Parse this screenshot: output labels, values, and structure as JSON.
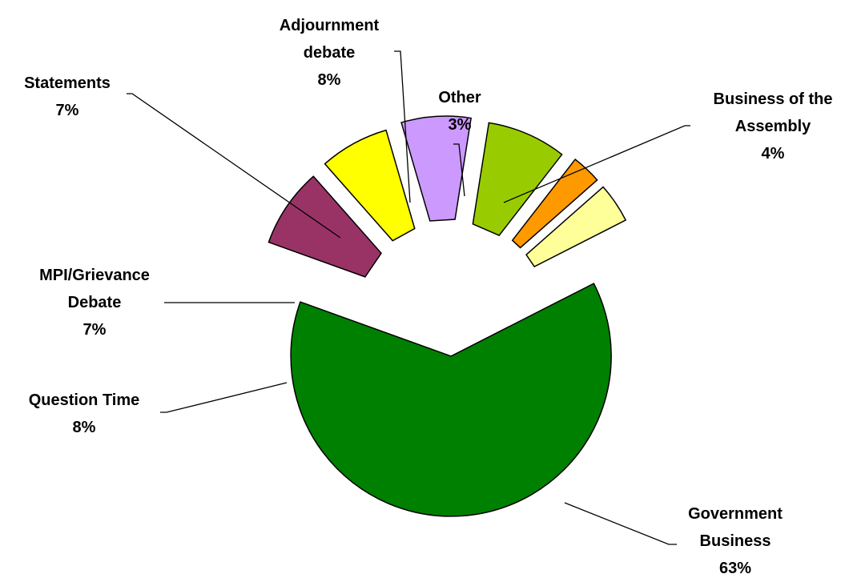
{
  "chart_data": {
    "type": "pie",
    "title": "",
    "exploded": true,
    "slices": [
      {
        "id": "government-business",
        "label_lines": [
          "Government",
          "Business"
        ],
        "percent_label": "63%",
        "value": 63,
        "color": "#008000"
      },
      {
        "id": "question-time",
        "label_lines": [
          "Question Time"
        ],
        "percent_label": "8%",
        "value": 8,
        "color": "#993366"
      },
      {
        "id": "mpi-grievance-debate",
        "label_lines": [
          "MPI/Grievance",
          "Debate"
        ],
        "percent_label": "7%",
        "value": 7,
        "color": "#ffff00"
      },
      {
        "id": "statements",
        "label_lines": [
          "Statements"
        ],
        "percent_label": "7%",
        "value": 7,
        "color": "#cc99ff"
      },
      {
        "id": "adjournment-debate",
        "label_lines": [
          "Adjournment",
          "debate"
        ],
        "percent_label": "8%",
        "value": 8,
        "color": "#99cc00"
      },
      {
        "id": "other",
        "label_lines": [
          "Other"
        ],
        "percent_label": "3%",
        "value": 3,
        "color": "#ff9900"
      },
      {
        "id": "business-of-the-assembly",
        "label_lines": [
          "Business of the",
          "Assembly"
        ],
        "percent_label": "4%",
        "value": 4,
        "color": "#ffff99"
      }
    ]
  }
}
